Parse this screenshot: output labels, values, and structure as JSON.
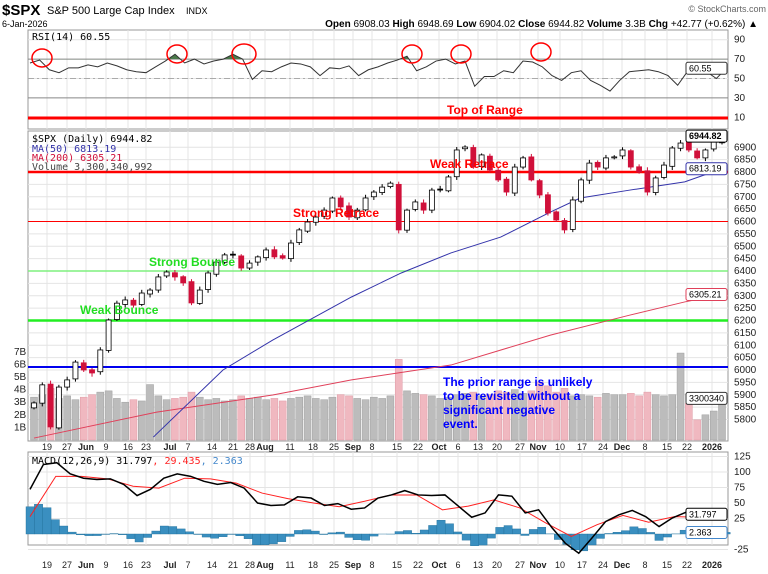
{
  "header": {
    "symbol": "$SPX",
    "name": "S&P 500 Large Cap Index",
    "exchange": "INDX",
    "watermark": "© StockCharts.com",
    "date": "6-Jan-2026",
    "open_label": "Open",
    "open": "6908.03",
    "high_label": "High",
    "high": "6948.69",
    "low_label": "Low",
    "low": "6904.02",
    "close_label": "Close",
    "close": "6944.82",
    "volume_label": "Volume",
    "volume": "3.3B",
    "chg_label": "Chg",
    "chg": "+42.77 (+0.62%) ▲"
  },
  "colors": {
    "up": "#000000",
    "down": "#d0103a",
    "ma50": "#3333aa",
    "ma200": "#e0405a",
    "macd": "#000000",
    "signal": "#ff2020",
    "hist": "#3a8fc0",
    "annot_red": "#ff0000",
    "annot_green": "#22dd22",
    "annot_blue": "#0000ff"
  },
  "chart_data": [
    {
      "type": "line",
      "title": "RSI(14) 60.55",
      "ylim": [
        0,
        100
      ],
      "y_ticks": [
        "90",
        "70",
        "50",
        "30",
        "10"
      ],
      "last_tag": "60.55",
      "values": [
        66,
        69,
        59,
        56,
        61,
        61,
        64,
        62,
        66,
        63,
        59,
        57,
        56,
        62,
        68,
        75,
        66,
        70,
        65,
        68,
        70,
        75,
        70,
        49,
        58,
        57,
        62,
        66,
        65,
        62,
        53,
        61,
        60,
        63,
        53,
        59,
        62,
        66,
        69,
        73,
        58,
        62,
        68,
        70,
        65,
        68,
        42,
        52,
        52,
        58,
        56,
        68,
        67,
        62,
        53,
        48,
        56,
        58,
        48,
        43,
        37,
        48,
        57,
        58,
        59,
        57,
        53,
        43,
        57,
        61,
        57,
        50,
        60
      ],
      "overbought": 70,
      "oversold": 30,
      "midline": 50,
      "annotation": {
        "text": "Top of Range",
        "level": 10
      }
    },
    {
      "type": "candlestick",
      "title": "$SPX (Daily) 6944.82",
      "legend": [
        "MA(50) 6813.19",
        "MA(200) 6305.21",
        "Volume 3,300,340,992"
      ],
      "ylim": [
        5750,
        6960
      ],
      "y_ticks": [
        "6900",
        "6850",
        "6800",
        "6750",
        "6700",
        "6650",
        "6600",
        "6550",
        "6500",
        "6450",
        "6400",
        "6350",
        "6300",
        "6250",
        "6200",
        "6150",
        "6100",
        "6050",
        "6000",
        "5950",
        "5900",
        "5850",
        "5800"
      ],
      "volume_ticks": [
        "7B",
        "6B",
        "5B",
        "4B",
        "3B",
        "2B",
        "1B"
      ],
      "tags": {
        "close": "6944.82",
        "ma50": "6813.19",
        "ma200": "6305.21",
        "volume": "3300340"
      },
      "closes": [
        5867,
        5940,
        5770,
        5931,
        5960,
        6032,
        6000,
        5988,
        6081,
        6202,
        6270,
        6283,
        6262,
        6311,
        6323,
        6376,
        6396,
        6376,
        6352,
        6271,
        6323,
        6392,
        6436,
        6465,
        6465,
        6412,
        6432,
        6457,
        6485,
        6457,
        6452,
        6513,
        6566,
        6598,
        6618,
        6646,
        6695,
        6659,
        6618,
        6646,
        6695,
        6719,
        6739,
        6755,
        6566,
        6646,
        6679,
        6646,
        6727,
        6727,
        6780,
        6889,
        6901,
        6820,
        6869,
        6808,
        6768,
        6719,
        6820,
        6857,
        6768,
        6707,
        6634,
        6606,
        6566,
        6687,
        6768,
        6836,
        6820,
        6857,
        6861,
        6889,
        6820,
        6800,
        6719,
        6776,
        6828,
        6897,
        6917,
        6889,
        6857,
        6889,
        6921,
        6944.82
      ],
      "volume_billions": [
        3.4,
        3.6,
        4.1,
        3.3,
        3.5,
        3.2,
        3.4,
        3.6,
        3.8,
        3.9,
        3.3,
        3.0,
        3.2,
        3.1,
        4.4,
        3.5,
        3.2,
        3.3,
        3.4,
        3.8,
        3.4,
        3.2,
        3.3,
        3.1,
        3.2,
        3.5,
        3.3,
        3.4,
        3.2,
        3.3,
        3.1,
        3.3,
        3.4,
        3.5,
        3.3,
        3.2,
        3.4,
        3.6,
        3.5,
        3.3,
        3.2,
        3.4,
        3.3,
        3.5,
        6.4,
        3.9,
        3.7,
        3.6,
        3.5,
        3.3,
        3.4,
        3.6,
        3.7,
        3.8,
        3.5,
        3.6,
        3.9,
        3.8,
        4.0,
        3.7,
        3.9,
        4.6,
        4.3,
        3.8,
        4.1,
        3.5,
        3.6,
        3.5,
        3.4,
        3.7,
        3.6,
        3.6,
        3.7,
        3.5,
        3.8,
        3.6,
        3.5,
        3.6,
        6.9,
        2.9,
        1.6,
        2.0,
        2.3,
        3.3
      ],
      "ma50": [
        [
          14.4,
          5729
        ],
        [
          22.8,
          6000
        ],
        [
          28.8,
          6121
        ],
        [
          38.3,
          6295
        ],
        [
          44.3,
          6392
        ],
        [
          50.3,
          6473
        ],
        [
          56.3,
          6537
        ],
        [
          62.3,
          6638
        ],
        [
          65.9,
          6695
        ],
        [
          71.9,
          6727
        ],
        [
          78.5,
          6760
        ],
        [
          83,
          6813.19
        ]
      ],
      "ma200": [
        [
          0,
          5725
        ],
        [
          14.8,
          5830
        ],
        [
          28.8,
          5899
        ],
        [
          38.3,
          5960
        ],
        [
          50.3,
          6020
        ],
        [
          62.3,
          6141
        ],
        [
          71.9,
          6222
        ],
        [
          78.5,
          6275
        ],
        [
          83,
          6305.21
        ]
      ],
      "annotations": [
        {
          "text": "Weak Retrace",
          "level": 6800,
          "color": "red",
          "weight": "thick"
        },
        {
          "text": "Strong Retrace",
          "level": 6600,
          "color": "red",
          "weight": "thin"
        },
        {
          "text": "Strong Bounce",
          "level": 6400,
          "color": "lightgreen",
          "weight": "thin"
        },
        {
          "text": "Weak Bounce",
          "level": 6200,
          "color": "green",
          "weight": "thick"
        },
        {
          "text": "",
          "level": 6012,
          "color": "blue",
          "weight": "thick"
        }
      ],
      "note_lines": [
        "The prior range is unlikely",
        "to be revisited without a",
        "significant negative",
        "event."
      ]
    },
    {
      "type": "line",
      "title": "MACD(12,26,9)",
      "legend": [
        "MACD(12,26,9) 31.797",
        "29.435",
        "2.363"
      ],
      "ylim": [
        -35,
        135
      ],
      "y_ticks": [
        "125",
        "100",
        "75",
        "50",
        "25",
        "-25"
      ],
      "tags": {
        "macd": "31.797",
        "hist": "2.363"
      },
      "macd": [
        72,
        112,
        115,
        97,
        90,
        88,
        89,
        80,
        62,
        72,
        90,
        97,
        93,
        85,
        80,
        83,
        74,
        50,
        46,
        47,
        60,
        58,
        46,
        49,
        40,
        42,
        58,
        63,
        70,
        63,
        62,
        63,
        45,
        27,
        34,
        63,
        61,
        34,
        39,
        10,
        -15,
        -31,
        -6,
        20,
        31,
        38,
        28,
        12,
        26,
        35,
        28,
        30,
        32
      ],
      "signal": [
        28,
        93,
        93,
        89,
        77,
        74,
        90,
        89,
        82,
        66,
        57,
        50,
        44,
        53,
        63,
        63,
        39,
        45,
        55,
        42,
        18,
        -4,
        15,
        30,
        19,
        28,
        27,
        29.4
      ]
    }
  ],
  "x_axis": {
    "labels": [
      "19",
      "27",
      "Jun",
      "9",
      "16",
      "23",
      "Jul",
      "7",
      "14",
      "21",
      "28",
      "Aug",
      "11",
      "18",
      "25",
      "Sep",
      "8",
      "15",
      "22",
      "Oct",
      "6",
      "13",
      "20",
      "27",
      "Nov",
      "10",
      "17",
      "24",
      "Dec",
      "8",
      "15",
      "22",
      "2026"
    ]
  }
}
